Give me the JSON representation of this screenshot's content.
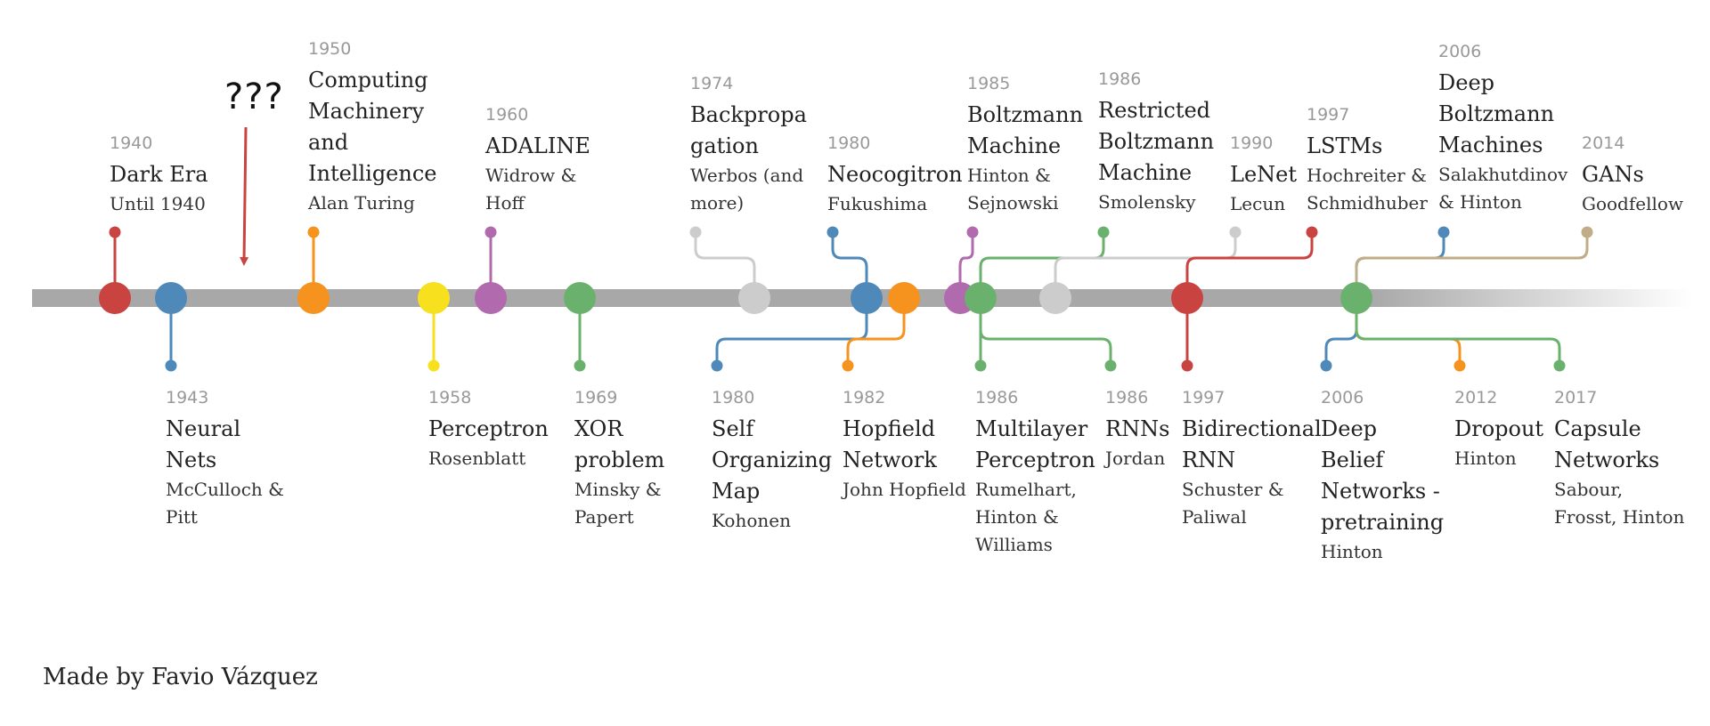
{
  "annotation": {
    "text": "???"
  },
  "credit": "Made by Favio Vázquez",
  "colors": {
    "timeline": "#a8a8a8",
    "red": "#c94341",
    "blue": "#4f89b9",
    "orange": "#f6921e",
    "yellow": "#f7e11f",
    "purple": "#b06aad",
    "green": "#6ab16e",
    "gray": "#cccccc",
    "tan": "#c1ac88"
  },
  "events": [
    {
      "id": "dark-era",
      "year": "1940",
      "title": "Dark Era",
      "author": "Until 1940",
      "color": "red",
      "side": "up"
    },
    {
      "id": "neural-nets",
      "year": "1943",
      "title": "Neural Nets",
      "author": "McCulloch & Pitt",
      "color": "blue",
      "side": "down"
    },
    {
      "id": "computing-machinery",
      "year": "1950",
      "title": "Computing Machinery and Intelligence",
      "author": "Alan Turing",
      "color": "orange",
      "side": "up"
    },
    {
      "id": "perceptron",
      "year": "1958",
      "title": "Perceptron",
      "author": "Rosenblatt",
      "color": "yellow",
      "side": "down"
    },
    {
      "id": "adaline",
      "year": "1960",
      "title": "ADALINE",
      "author": "Widrow & Hoff",
      "color": "purple",
      "side": "up"
    },
    {
      "id": "xor-problem",
      "year": "1969",
      "title": "XOR problem",
      "author": "Minsky & Papert",
      "color": "green",
      "side": "down"
    },
    {
      "id": "backpropagation",
      "year": "1974",
      "title": "Backpropagation",
      "author": "Werbos (and more)",
      "color": "gray",
      "side": "up"
    },
    {
      "id": "self-organizing-map",
      "year": "1980",
      "title": "Self Organizing Map",
      "author": "Kohonen",
      "color": "blue",
      "side": "down"
    },
    {
      "id": "neocogitron",
      "year": "1980",
      "title": "Neocogitron",
      "author": "Fukushima",
      "color": "blue",
      "side": "up"
    },
    {
      "id": "hopfield-network",
      "year": "1982",
      "title": "Hopfield Network",
      "author": "John Hopfield",
      "color": "orange",
      "side": "down"
    },
    {
      "id": "boltzmann-machine",
      "year": "1985",
      "title": "Boltzmann Machine",
      "author": "Hinton & Sejnowski",
      "color": "purple",
      "side": "up"
    },
    {
      "id": "multilayer-perceptron",
      "year": "1986",
      "title": "Multilayer Perceptron",
      "author": "Rumelhart, Hinton & Williams",
      "color": "green",
      "side": "down"
    },
    {
      "id": "restricted-boltzmann",
      "year": "1986",
      "title": "Restricted Boltzmann Machine",
      "author": "Smolensky",
      "color": "green",
      "side": "up"
    },
    {
      "id": "rnns",
      "year": "1986",
      "title": "RNNs",
      "author": "Jordan",
      "color": "green",
      "side": "down"
    },
    {
      "id": "lenet",
      "year": "1990",
      "title": "LeNet",
      "author": "Lecun",
      "color": "gray",
      "side": "up"
    },
    {
      "id": "bidirectional-rnn",
      "year": "1997",
      "title": "Bidirectional RNN",
      "author": "Schuster & Paliwal",
      "color": "red",
      "side": "down"
    },
    {
      "id": "lstms",
      "year": "1997",
      "title": "LSTMs",
      "author": "Hochreiter & Schmidhuber",
      "color": "red",
      "side": "up"
    },
    {
      "id": "deep-belief-networks",
      "year": "2006",
      "title": "Deep Belief Networks - pretraining",
      "author": "Hinton",
      "color": "blue",
      "side": "down"
    },
    {
      "id": "deep-boltzmann-machines",
      "year": "2006",
      "title": "Deep Boltzmann Machines",
      "author": "Salakhutdinov & Hinton",
      "color": "blue",
      "side": "up"
    },
    {
      "id": "dropout",
      "year": "2012",
      "title": "Dropout",
      "author": "Hinton",
      "color": "orange",
      "side": "down"
    },
    {
      "id": "gans",
      "year": "2014",
      "title": "GANs",
      "author": "Goodfellow",
      "color": "tan",
      "side": "up"
    },
    {
      "id": "capsule-networks",
      "year": "2017",
      "title": "Capsule Networks",
      "author": "Sabour, Frosst, Hinton",
      "color": "green",
      "side": "down"
    }
  ]
}
